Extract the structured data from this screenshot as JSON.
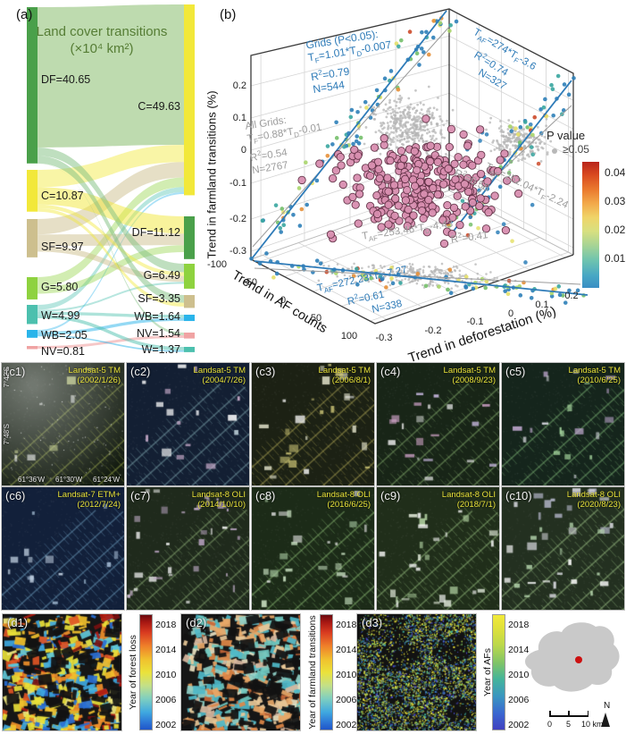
{
  "panel_a": {
    "label": "(a)",
    "title_line1": "Land cover transitions",
    "title_line2": "(×10⁴ km²)",
    "ribbon_green": "#b9d8a8",
    "ribbon_df_light": "#7fbf7f",
    "left_nodes": [
      {
        "label": "DF=40.65",
        "color": "#4aa04a"
      },
      {
        "label": "C=10.87",
        "color": "#f2e83a"
      },
      {
        "label": "SF=9.97",
        "color": "#cdbf8e"
      },
      {
        "label": "G=5.80",
        "color": "#8ed23f"
      },
      {
        "label": "W=4.99",
        "color": "#4cc0ae"
      },
      {
        "label": "WB=2.05",
        "color": "#2ab4ea"
      },
      {
        "label": "NV=0.81",
        "color": "#f0a3a3"
      }
    ],
    "right_nodes": [
      {
        "label": "C=49.63",
        "color": "#f2e83a"
      },
      {
        "label": "DF=11.12",
        "color": "#4aa04a"
      },
      {
        "label": "G=6.49",
        "color": "#8ed23f"
      },
      {
        "label": "SF=3.35",
        "color": "#cdbf8e"
      },
      {
        "label": "WB=1.64",
        "color": "#2ab4ea"
      },
      {
        "label": "NV=1.54",
        "color": "#f0a3a3"
      },
      {
        "label": "W=1.37",
        "color": "#4cc0ae"
      }
    ]
  },
  "panel_b": {
    "label": "(b)",
    "ylabel": "Trend in farmland transitions (%)",
    "xlabel": "Trend in deforestation (%)",
    "zlabel": "Trend in AF counts",
    "y_ticks": [
      "0.2",
      "0.1",
      "0",
      "-0.1",
      "-0.2",
      "-0.3"
    ],
    "x_ticks": [
      "-0.3",
      "-0.2",
      "-0.1",
      "0",
      "0.1",
      "0.2"
    ],
    "z_ticks": [
      "-100",
      "-50",
      "0",
      "50",
      "100"
    ],
    "ann_grids_xy": {
      "line1": "Grids (P<0.05):",
      "line2": "T_{F}=1.01*T_{D}-0.007",
      "line3": "R^{2}=0.79",
      "line4": "N=544"
    },
    "ann_all_xy": {
      "line1": "All Grids:",
      "line2": "T_{F}=0.88*T_{D}-0.01",
      "line3": "R^{2}=0.54",
      "line4": "N=2767"
    },
    "ann_grids_right": {
      "line1": "T_{AF}=274*T_{F}-3.6",
      "line2": "R^{2}=0.74",
      "line3": "N=327"
    },
    "ann_all_right": {
      "line1": "T_{AF}=252.04*T_{F}-2.24",
      "line2": "R^{2}=0.58"
    },
    "ann_all_floor": {
      "line1": "T_{AF}=253.46*T_{D}-4.43",
      "line2": "R^{2}=0.41"
    },
    "ann_grids_floor": {
      "line1": "T_{AF}=272.23*T_{D}-7.27",
      "line2": "R^{2}=0.61",
      "line3": "N=338"
    },
    "legend": {
      "title": "P value",
      "ge_label": "≥0.05",
      "ticks": [
        "0.04",
        "0.03",
        "0.02",
        "0.01"
      ]
    },
    "colors": {
      "fit_line_blue": "#2e7bb8",
      "fit_line_gray": "#9a9a9a",
      "pink_fill": "#d98fb0",
      "pink_edge": "#5f2f44",
      "gray_dot": "#b8b8b8"
    }
  },
  "panels_c": [
    {
      "id": "(c1)",
      "sensor": "Landsat-5 TM",
      "date": "(2002/1/26)"
    },
    {
      "id": "(c2)",
      "sensor": "Landsat-5 TM",
      "date": "(2004/7/26)"
    },
    {
      "id": "(c3)",
      "sensor": "Landsat-5 TM",
      "date": "(2006/8/1)"
    },
    {
      "id": "(c4)",
      "sensor": "Landsat-5 TM",
      "date": "(2008/9/23)"
    },
    {
      "id": "(c5)",
      "sensor": "Landsat-5 TM",
      "date": "(2010/6/25)"
    },
    {
      "id": "(c6)",
      "sensor": "Landsat-7 ETM+",
      "date": "(2012/7/24)"
    },
    {
      "id": "(c7)",
      "sensor": "Landsat-8 OLI",
      "date": "(2014/10/10)"
    },
    {
      "id": "(c8)",
      "sensor": "Landsat-8 OLI",
      "date": "(2016/6/25)"
    },
    {
      "id": "(c9)",
      "sensor": "Landsat-8 OLI",
      "date": "(2018/7/1)"
    },
    {
      "id": "(c10)",
      "sensor": "Landsat-8 OLI",
      "date": "(2020/8/23)"
    }
  ],
  "c1_coords": {
    "lat": [
      "7°42'S",
      "7°48'S"
    ],
    "lon": [
      "61°36'W",
      "61°30'W",
      "61°24'W"
    ]
  },
  "panels_d": [
    {
      "label": "(d1)",
      "colorbar_title": "Year of forest loss",
      "ticks": [
        "2018",
        "2014",
        "2010",
        "2006",
        "2002"
      ]
    },
    {
      "label": "(d2)",
      "colorbar_title": "Year of farmland transitions",
      "ticks": [
        "2018",
        "2014",
        "2010",
        "2006",
        "2002"
      ]
    },
    {
      "label": "(d3)",
      "colorbar_title": "Year of AFs",
      "ticks": [
        "2018",
        "2014",
        "2010",
        "2006",
        "2002"
      ]
    }
  ],
  "inset": {
    "scale_labels": [
      "0",
      "5",
      "10 km"
    ],
    "north": "N"
  },
  "chart_data": [
    {
      "type": "sankey",
      "title": "Land cover transitions (×10⁴ km²)",
      "unit": "×10⁴ km²",
      "left": [
        {
          "name": "DF",
          "value": 40.65
        },
        {
          "name": "C",
          "value": 10.87
        },
        {
          "name": "SF",
          "value": 9.97
        },
        {
          "name": "G",
          "value": 5.8
        },
        {
          "name": "W",
          "value": 4.99
        },
        {
          "name": "WB",
          "value": 2.05
        },
        {
          "name": "NV",
          "value": 0.81
        }
      ],
      "right": [
        {
          "name": "C",
          "value": 49.63
        },
        {
          "name": "DF",
          "value": 11.12
        },
        {
          "name": "G",
          "value": 6.49
        },
        {
          "name": "SF",
          "value": 3.35
        },
        {
          "name": "WB",
          "value": 1.64
        },
        {
          "name": "NV",
          "value": 1.54
        },
        {
          "name": "W",
          "value": 1.37
        }
      ]
    },
    {
      "type": "scatter",
      "projection": "3d",
      "xlabel": "Trend in deforestation (%)",
      "xlim": [
        -0.3,
        0.2
      ],
      "ylabel": "Trend in farmland transitions (%)",
      "ylim": [
        -0.3,
        0.2
      ],
      "zlabel": "Trend in AF counts",
      "zlim": [
        -100,
        100
      ],
      "colorbar": {
        "title": "P value",
        "ticks": [
          0.04,
          0.03,
          0.02,
          0.01
        ],
        "nonsignificant": "≥0.05"
      },
      "fits": [
        {
          "group": "Grids (P<0.05)",
          "plane": "TF vs TD",
          "equation": "TF=1.01*TD-0.007",
          "R2": 0.79,
          "N": 544
        },
        {
          "group": "All Grids",
          "plane": "TF vs TD",
          "equation": "TF=0.88*TD-0.01",
          "R2": 0.54,
          "N": 2767
        },
        {
          "group": "Grids (P<0.05)",
          "plane": "TAF vs TF",
          "equation": "TAF=274*TF-3.6",
          "R2": 0.74,
          "N": 327
        },
        {
          "group": "All Grids",
          "plane": "TAF vs TF",
          "equation": "TAF=252.04*TF-2.24",
          "R2": 0.58
        },
        {
          "group": "All Grids",
          "plane": "TAF vs TD",
          "equation": "TAF=253.46*TD-4.43",
          "R2": 0.41
        },
        {
          "group": "Grids (P<0.05)",
          "plane": "TAF vs TD",
          "equation": "TAF=272.23*TD-7.27",
          "R2": 0.61,
          "N": 338
        }
      ]
    },
    {
      "type": "heatmap",
      "maps": [
        {
          "name": "Year of forest loss",
          "range": [
            2002,
            2018
          ]
        },
        {
          "name": "Year of farmland transitions",
          "range": [
            2002,
            2018
          ]
        },
        {
          "name": "Year of AFs",
          "range": [
            2002,
            2018
          ]
        }
      ]
    }
  ]
}
